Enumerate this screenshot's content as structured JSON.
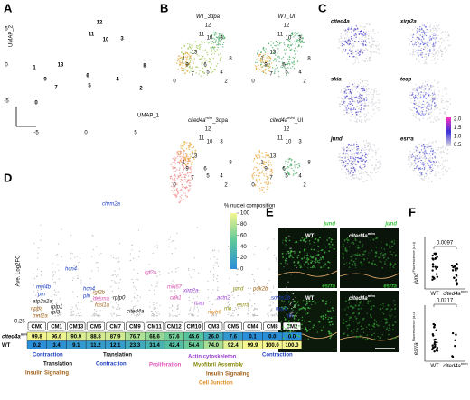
{
  "panels": {
    "A": {
      "label": "A",
      "x_label": "UMAP_1",
      "y_label": "UMAP_2",
      "xticks": [
        "-5",
        "0",
        "5"
      ],
      "yticks": [
        "5",
        "0",
        "-5"
      ],
      "clusters": [
        "12",
        "11",
        "10",
        "3",
        "8",
        "1",
        "9",
        "13",
        "7",
        "6",
        "5",
        "4",
        "2",
        "0"
      ]
    },
    "B": {
      "label": "B",
      "titles": [
        [
          "WT_3dpa"
        ],
        [
          "WT_UI"
        ],
        [
          "cited4a",
          "m/m",
          "_3dpa"
        ],
        [
          "cited4a",
          "m/m",
          "_UI"
        ]
      ],
      "clusters": [
        "12",
        "11",
        "10",
        "3",
        "13",
        "1",
        "9",
        "7",
        "6",
        "5",
        "4",
        "8",
        "2",
        "0"
      ]
    },
    "C": {
      "label": "C",
      "genes": [
        "cited4a",
        "xirp2a",
        "skia",
        "tcap",
        "jund",
        "esrra"
      ],
      "colorbar_ticks": [
        "2.0",
        "1.5",
        "1.0",
        "0.5"
      ]
    },
    "D": {
      "label": "D",
      "y_label": "Ave. Log2FC",
      "y_tick": "0.25",
      "legend_title": "% nuclei composition",
      "legend_ticks": [
        100,
        80,
        60,
        40,
        20,
        0
      ],
      "clusters": [
        "CM0",
        "CM1",
        "CM13",
        "CM6",
        "CM7",
        "CM9",
        "CM11",
        "CM12",
        "CM10",
        "CM3",
        "CM5",
        "CM4",
        "CM8",
        "CM2"
      ],
      "rows": [
        {
          "name": [
            "cited4a",
            "m/m"
          ],
          "values": [
            99.8,
            96.6,
            90.9,
            88.8,
            87.9,
            76.7,
            68.6,
            57.6,
            45.6,
            26.0,
            7.6,
            0.1,
            0.0,
            0.0
          ],
          "value_labels": [
            "99.8",
            "96.6",
            "90.9",
            "88.8",
            "87.9",
            "76.7",
            "68.6",
            "57.6",
            "45.6",
            "26.0",
            "7.6",
            "0.1",
            "0.0",
            "0.0"
          ]
        },
        {
          "name": [
            "WT"
          ],
          "values": [
            0.2,
            3.4,
            9.1,
            11.2,
            12.1,
            23.3,
            31.4,
            42.4,
            54.4,
            74.0,
            92.4,
            99.9,
            100.0,
            100.0
          ],
          "value_labels": [
            "0.2",
            "3.4",
            "9.1",
            "11.2",
            "12.1",
            "23.3",
            "31.4",
            "42.4",
            "54.4",
            "74.0",
            "92.4",
            "99.9",
            "100.0",
            "100.0"
          ]
        }
      ],
      "genes": [
        "chrm2a",
        "hcn4",
        "myl4b",
        "pln",
        "atp2a2a",
        "nppa",
        "tnnt2a",
        "rplp1",
        "rpl3",
        "igf2b",
        "desma",
        "fosl1a",
        "hcn4",
        "pln",
        "rplp0",
        "igf2a",
        "mki67",
        "cdk1",
        "xirp2a",
        "tcap",
        "jund",
        "esrra",
        "pdk2b",
        "sorbs2b",
        "nppb",
        "myh6",
        "actn2",
        "cited4a",
        "mb",
        "ttn"
      ],
      "annotations": [
        {
          "text": "Contraction",
          "color": "#1f3fc4"
        },
        {
          "text": "Translation",
          "color": "#111111"
        },
        {
          "text": "Insulin Signaling",
          "color": "#a0621a"
        },
        {
          "text": "Translation",
          "color": "#111111"
        },
        {
          "text": "Contraction",
          "color": "#1f3fc4"
        },
        {
          "text": "Actin cytoskeleton",
          "color": "#9a3fd0"
        },
        {
          "text": "Proliferation",
          "color": "#e055b8"
        },
        {
          "text": "Myofibril Assembly",
          "color": "#8a8a10"
        },
        {
          "text": "Insulin Signaling",
          "color": "#a0621a"
        },
        {
          "text": "Cell Junction",
          "color": "#e08a1a"
        },
        {
          "text": "Contraction",
          "color": "#1f3fc4"
        }
      ]
    },
    "E": {
      "label": "E",
      "genes": [
        "jund",
        "jund",
        "esrra",
        "esrra"
      ],
      "conditions": [
        [
          "WT"
        ],
        [
          "cited4a",
          "m/m"
        ],
        [
          "WT"
        ],
        [
          "cited4a",
          "m/m"
        ]
      ]
    },
    "F": {
      "label": "F",
      "p_values": [
        "0.0097",
        "0.0217"
      ],
      "y_labels": [
        [
          "jund",
          " Fluorescence (a.u)"
        ],
        [
          "esrra",
          " Fluorescence (a.u)"
        ]
      ],
      "x_labels": [
        [
          "WT"
        ],
        [
          "cited4a",
          "m/m"
        ]
      ]
    }
  }
}
